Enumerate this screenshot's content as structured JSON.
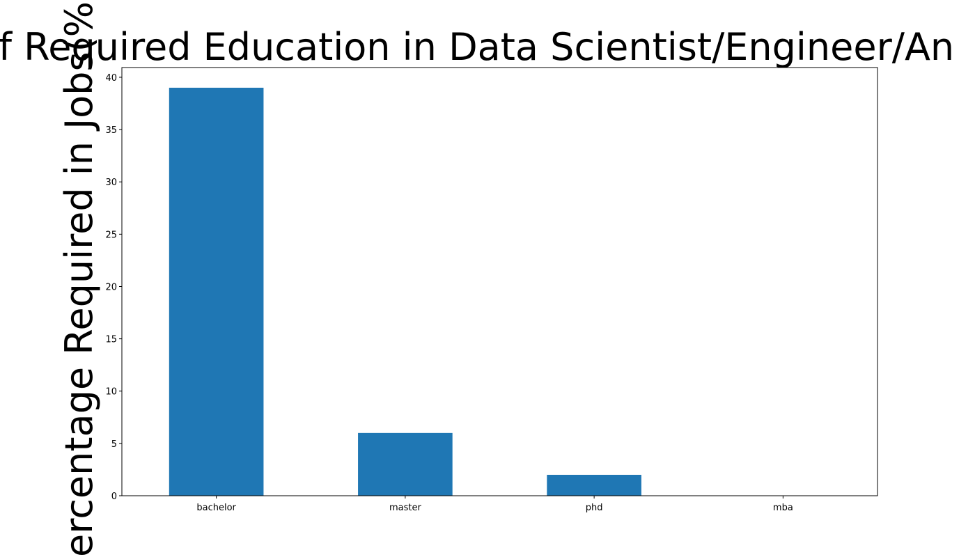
{
  "chart_data": {
    "type": "bar",
    "title": "f Required Education in Data Scientist/Engineer/An",
    "y_label": "ercentage Required in Jobs(%",
    "categories": [
      "bachelor",
      "master",
      "phd",
      "mba"
    ],
    "values": [
      39,
      6,
      2,
      0
    ],
    "color": "#1f77b4",
    "ylim": [
      0,
      40.93
    ],
    "yticks": [
      0,
      5,
      10,
      15,
      20,
      25,
      30,
      35,
      40
    ]
  }
}
